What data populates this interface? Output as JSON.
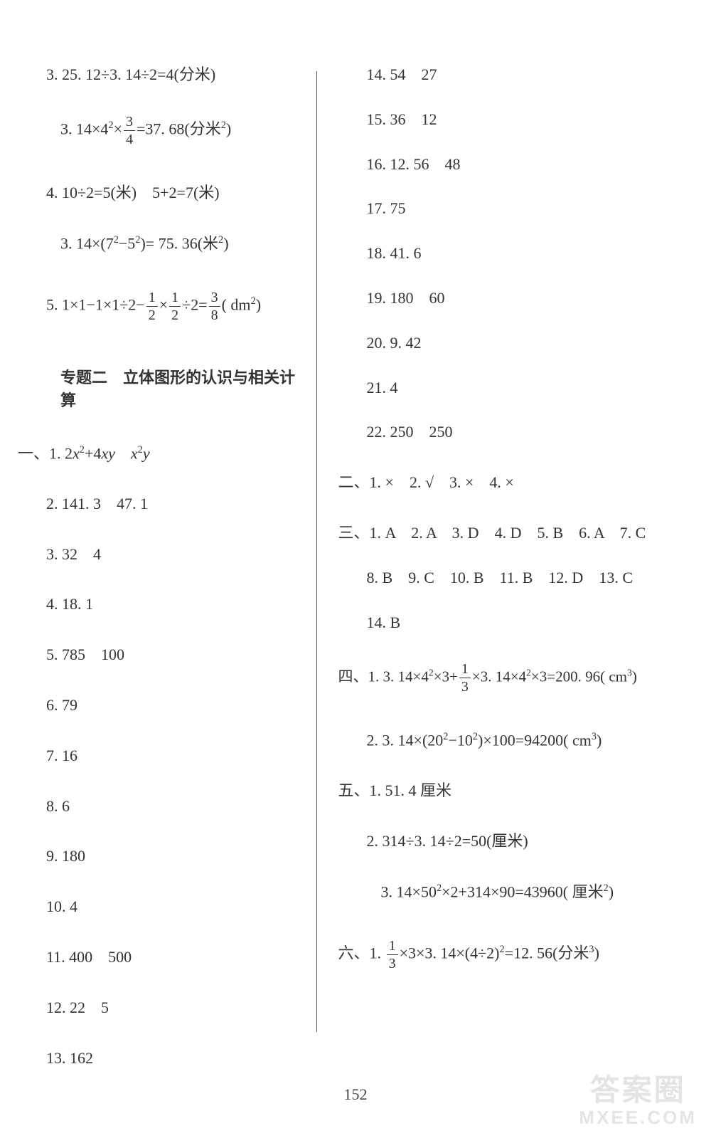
{
  "page_number": "152",
  "watermark": {
    "line1": "答案圈",
    "line2": "MXEE.COM"
  },
  "left": {
    "p3a": "3. 25. 12÷3. 14÷2=4(分米)",
    "p3b_prefix": "3. 14×4",
    "p3b_sup": "2",
    "p3b_mid": "×",
    "p3b_frac_num": "3",
    "p3b_frac_den": "4",
    "p3b_suffix": "=37. 68(分米",
    "p3b_sup2": "2",
    "p3b_end": ")",
    "p4a": "4. 10÷2=5(米)　5+2=7(米)",
    "p4b_prefix": "3. 14×(7",
    "p4b_s1": "2",
    "p4b_mid": "−5",
    "p4b_s2": "2",
    "p4b_suffix": ")= 75. 36(米",
    "p4b_s3": "2",
    "p4b_end": ")",
    "p5_prefix": "5. 1×1−1×1÷2−",
    "p5_f1n": "1",
    "p5_f1d": "2",
    "p5_m1": "×",
    "p5_f2n": "1",
    "p5_f2d": "2",
    "p5_m2": "÷2=",
    "p5_f3n": "3",
    "p5_f3d": "8",
    "p5_suffix": "( dm",
    "p5_sup": "2",
    "p5_end": ")",
    "section_title": "专题二　立体图形的认识与相关计算",
    "q1_prefix": "一、1. 2",
    "q1_x2": "x",
    "q1_sup1": "2",
    "q1_mid": "+4",
    "q1_xy": "xy",
    "q1_sp": "　",
    "q1_x": "x",
    "q1_sup2": "2",
    "q1_y": "y",
    "q2": "2. 141. 3　47. 1",
    "q3": "3. 32　4",
    "q4": "4. 18. 1",
    "q5": "5. 785　100",
    "q6": "6. 79",
    "q7": "7. 16",
    "q8": "8. 6",
    "q9": "9. 180",
    "q10": "10. 4",
    "q11": "11. 400　500",
    "q12": "12. 22　5",
    "q13": "13. 162"
  },
  "right": {
    "q14": "14. 54　27",
    "q15": "15. 36　12",
    "q16": "16. 12. 56　48",
    "q17": "17. 75",
    "q18": "18. 41. 6",
    "q19": "19. 180　60",
    "q20": "20. 9. 42",
    "q21": "21. 4",
    "q22": "22. 250　250",
    "sec2": "二、1. ×　2. √　3. ×　4. ×",
    "sec3a": "三、1. A　2. A　3. D　4. D　5. B　6. A　7. C",
    "sec3b": "8. B　9. C　10. B　11. B　12. D　13. C",
    "sec3c": "14. B",
    "sec4a_prefix": "四、1. 3. 14×4",
    "sec4a_s1": "2",
    "sec4a_m1": "×3+",
    "sec4a_fn": "1",
    "sec4a_fd": "3",
    "sec4a_m2": "×3. 14×4",
    "sec4a_s2": "2",
    "sec4a_m3": "×3=200. 96( cm",
    "sec4a_s3": "3",
    "sec4a_end": ")",
    "sec4b_prefix": "2. 3. 14×(20",
    "sec4b_s1": "2",
    "sec4b_m1": "−10",
    "sec4b_s2": "2",
    "sec4b_m2": ")×100=94200( cm",
    "sec4b_s3": "3",
    "sec4b_end": ")",
    "sec5a": "五、1. 51. 4 厘米",
    "sec5b": "2. 314÷3. 14÷2=50(厘米)",
    "sec5c_prefix": "3. 14×50",
    "sec5c_s1": "2",
    "sec5c_m1": "×2+314×90=43960( 厘米",
    "sec5c_s2": "2",
    "sec5c_end": ")",
    "sec6_prefix": "六、1. ",
    "sec6_fn": "1",
    "sec6_fd": "3",
    "sec6_m1": "×3×3. 14×(4÷2)",
    "sec6_s1": "2",
    "sec6_m2": "=12. 56(分米",
    "sec6_s2": "3",
    "sec6_end": ")"
  }
}
